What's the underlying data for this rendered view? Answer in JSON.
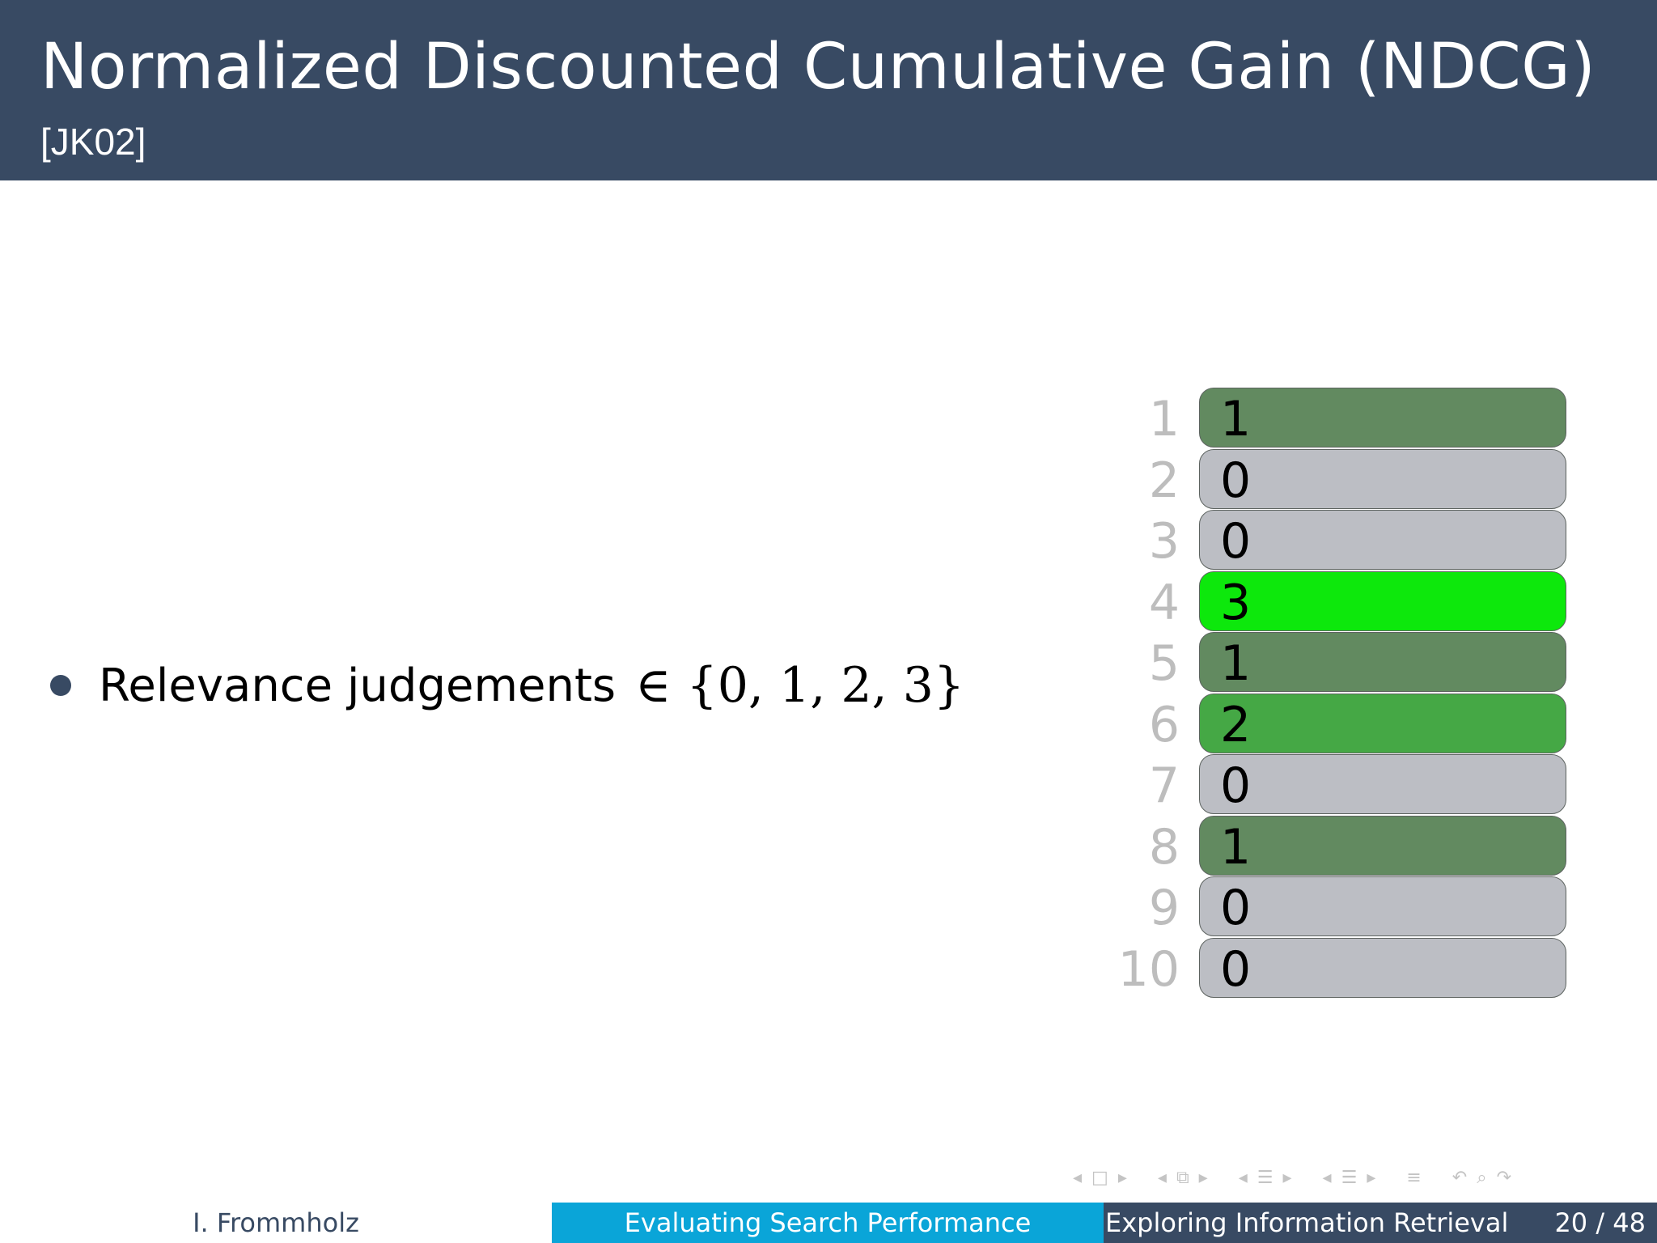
{
  "header": {
    "title": "Normalized Discounted Cumulative Gain (NDCG)",
    "subtitle": "[JK02]",
    "background": "#384a63"
  },
  "content": {
    "bullet_text": "Relevance judgements",
    "bullet_math": "∈ {0, 1, 2, 3}"
  },
  "ranking": [
    {
      "rank": "1",
      "value": "1",
      "color": "#628a60"
    },
    {
      "rank": "2",
      "value": "0",
      "color": "#bcbec4"
    },
    {
      "rank": "3",
      "value": "0",
      "color": "#bcbec4"
    },
    {
      "rank": "4",
      "value": "3",
      "color": "#0de80c"
    },
    {
      "rank": "5",
      "value": "1",
      "color": "#628a60"
    },
    {
      "rank": "6",
      "value": "2",
      "color": "#45a845"
    },
    {
      "rank": "7",
      "value": "0",
      "color": "#bcbec4"
    },
    {
      "rank": "8",
      "value": "1",
      "color": "#628a60"
    },
    {
      "rank": "9",
      "value": "0",
      "color": "#bcbec4"
    },
    {
      "rank": "10",
      "value": "0",
      "color": "#bcbec4"
    }
  ],
  "nav_icons": [
    "nav-prev-icon",
    "frame-icon",
    "nav-next-icon",
    "nav-prev-icon",
    "slides-icon",
    "nav-next-icon",
    "nav-prev-icon",
    "subsection-icon",
    "nav-next-icon",
    "nav-prev-icon",
    "section-icon",
    "nav-next-icon",
    "outline-icon",
    "undo-icon",
    "search-icon",
    "redo-icon"
  ],
  "footer": {
    "author": "I. Frommholz",
    "title": "Evaluating Search Performance",
    "subtitle": "Exploring Information Retrieval",
    "page": "20 / 48",
    "accent": "#0aa5d8"
  }
}
